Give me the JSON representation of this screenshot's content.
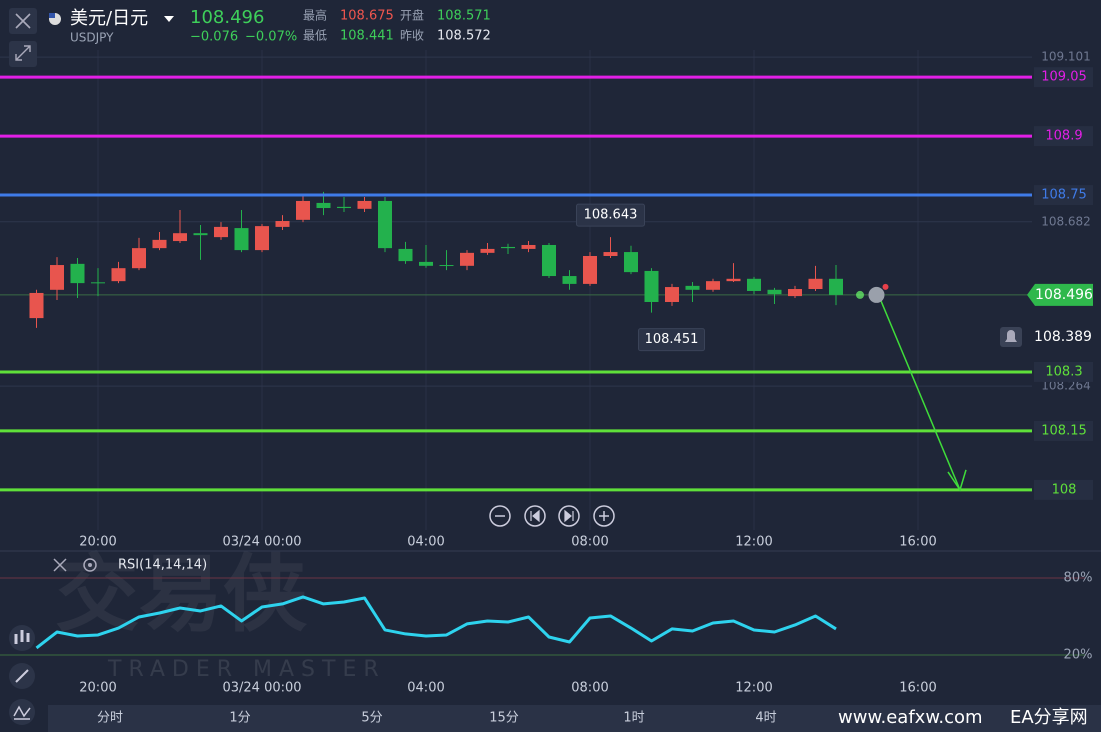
{
  "header": {
    "title": "美元/日元",
    "symbol": "USDJPY",
    "price": "108.496",
    "change": "−0.076",
    "change_pct": "−0.07%",
    "stats": [
      {
        "label": "最高",
        "value": "108.675"
      },
      {
        "label": "开盘",
        "value": "108.571"
      },
      {
        "label": "最低",
        "value": "108.441"
      },
      {
        "label": "昨收",
        "value": "108.572"
      }
    ]
  },
  "chart_data": [
    {
      "type": "candlestick",
      "categories": [
        null,
        null,
        null,
        "20:00",
        null,
        null,
        null,
        null,
        null,
        null,
        null,
        "03/24 00:00",
        null,
        null,
        null,
        null,
        null,
        null,
        null,
        "04:00",
        null,
        null,
        null,
        null,
        null,
        null,
        null,
        "08:00",
        null,
        null,
        null,
        null,
        null,
        null,
        null,
        "12:00",
        null,
        null,
        null,
        null,
        null,
        null,
        null,
        "16:00",
        null,
        null,
        null,
        null,
        null
      ],
      "open": [
        108.437,
        108.509,
        108.575,
        108.528,
        108.531,
        108.564,
        108.615,
        108.633,
        108.653,
        108.643,
        108.666,
        108.61,
        108.669,
        108.687,
        108.73,
        108.72,
        108.715,
        108.735,
        108.613,
        108.58,
        108.572,
        108.57,
        108.603,
        108.618,
        108.613,
        108.623,
        108.544,
        108.524,
        108.595,
        108.605,
        108.557,
        108.478,
        108.519,
        108.509,
        108.531,
        108.537,
        108.509,
        108.493,
        108.511,
        108.537,
        null,
        null,
        null,
        null,
        null,
        null,
        null,
        null,
        null
      ],
      "high": [
        108.509,
        108.592,
        108.59,
        108.564,
        108.58,
        108.641,
        108.656,
        108.712,
        108.674,
        108.681,
        108.712,
        108.676,
        108.699,
        108.748,
        108.758,
        108.745,
        108.745,
        108.745,
        108.631,
        108.623,
        108.61,
        108.61,
        108.628,
        108.626,
        108.633,
        108.628,
        108.559,
        108.605,
        108.643,
        108.621,
        108.564,
        108.524,
        108.529,
        108.537,
        108.577,
        108.542,
        108.514,
        108.519,
        108.57,
        108.572,
        null,
        null,
        null,
        null,
        null,
        null,
        null,
        null,
        null
      ],
      "low": [
        108.412,
        108.483,
        108.488,
        108.493,
        108.526,
        108.559,
        108.61,
        108.628,
        108.585,
        108.636,
        108.605,
        108.605,
        108.661,
        108.681,
        108.699,
        108.707,
        108.707,
        108.605,
        108.575,
        108.565,
        108.559,
        108.559,
        108.598,
        108.6,
        108.605,
        108.539,
        108.509,
        108.519,
        108.59,
        108.549,
        108.451,
        108.468,
        108.478,
        108.504,
        108.529,
        108.498,
        108.473,
        108.488,
        108.506,
        108.47,
        null,
        null,
        null,
        null,
        null,
        null,
        null,
        null,
        null
      ],
      "close": [
        108.501,
        108.572,
        108.526,
        108.526,
        108.564,
        108.615,
        108.636,
        108.653,
        108.648,
        108.669,
        108.61,
        108.671,
        108.684,
        108.735,
        108.717,
        108.717,
        108.735,
        108.615,
        108.582,
        108.57,
        108.57,
        108.603,
        108.613,
        108.615,
        108.623,
        108.544,
        108.524,
        108.595,
        108.605,
        108.554,
        108.478,
        108.516,
        108.509,
        108.531,
        108.537,
        108.506,
        108.498,
        108.511,
        108.537,
        108.496,
        null,
        null,
        null,
        null,
        null,
        null,
        null,
        null,
        null
      ],
      "up_color": "#e8554e",
      "down_color": "#23b14d",
      "ylim": [
        107.898,
        109.119
      ],
      "yticks": [
        109.101,
        108.682,
        108.264
      ],
      "grid": true,
      "levels": [
        {
          "value": 109.05,
          "color": "#e21fe6"
        },
        {
          "value": 108.9,
          "color": "#e21fe6"
        },
        {
          "value": 108.75,
          "color": "#3f7be8"
        },
        {
          "value": 108.3,
          "color": "#5fe03a"
        },
        {
          "value": 108.15,
          "color": "#5fe03a"
        },
        {
          "value": 108,
          "color": "#5fe03a"
        }
      ],
      "last_price": 108.496,
      "alert_price": 108.389,
      "high_label": 108.643,
      "low_label": 108.451
    },
    {
      "type": "line",
      "title": "RSI(14,14,14)",
      "series": [
        {
          "color": "#2ed3ee",
          "values": [
            25.5,
            37.9,
            34.8,
            35.6,
            41.0,
            49.6,
            52.7,
            56.6,
            54.3,
            58.2,
            46.5,
            57.4,
            59.8,
            65.2,
            59.8,
            61.3,
            64.4,
            39.5,
            36.4,
            34.8,
            35.6,
            44.2,
            46.5,
            45.7,
            49.6,
            34.0,
            30.1,
            48.8,
            50.4,
            41.0,
            30.9,
            40.3,
            38.7,
            44.9,
            46.5,
            39.5,
            37.9,
            43.4,
            50.4,
            40.3,
            null,
            null,
            null,
            null,
            null,
            null,
            null,
            null,
            null
          ]
        }
      ],
      "ylim": [
        4.4,
        94
      ],
      "yticks": [
        {
          "value": 80,
          "label": "80%"
        },
        {
          "value": 20,
          "label": "20%"
        }
      ],
      "ytick_colors": [
        "#6b3443",
        "#3b6e3e"
      ]
    }
  ],
  "tabs": [
    "分时",
    "1分",
    "5分",
    "15分",
    "1时",
    "4时"
  ],
  "watermark": {
    "logo": "交易侠",
    "text": "TRADER MASTER",
    "site": "www.eafxw.com",
    "site_name": "EA分享网"
  }
}
